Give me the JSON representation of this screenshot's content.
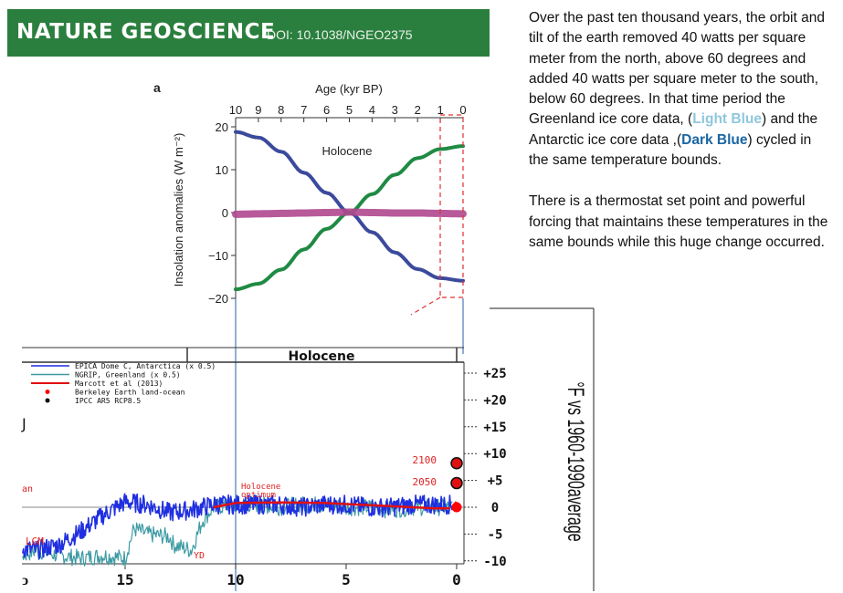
{
  "banner": {
    "journal": "NATURE GEOSCIENCE",
    "doi": "DOI: 10.1038/NGEO2375"
  },
  "panel_label": "a",
  "note": {
    "p1_before_light": "Over the past ten thousand years, the orbit and tilt of the earth removed 40 watts per square meter from the north, above 60 degrees and added 40 watts per square meter to the south, below 60 degrees.  In that time period the Greenland ice core data, (",
    "light_blue": "Light Blue",
    "p1_mid": ") and the Antarctic ice core data ,(",
    "dark_blue": "Dark Blue",
    "p1_after": ") cycled in the same temperature bounds.",
    "p2": "There is a thermostat set point and powerful forcing that maintains these temperatures in the same bounds while this huge change occurred."
  },
  "colors": {
    "banner": "#2b7f3e",
    "north": "#3b4a9c",
    "south": "#1f8a43",
    "difference": "#b0478f",
    "epica": "#1f2fe0",
    "ngrip": "#3d9aa3",
    "marcott": "#e01010",
    "berkeley": "#ff0000",
    "ipcc": "#111111",
    "zoom_box": "#e03030"
  },
  "chart_data": [
    {
      "type": "line",
      "xlabel": "Age (kyr BP)",
      "ylabel": "Insolation anomalies (W m⁻²)",
      "xlim": [
        10,
        0
      ],
      "ylim": [
        -20,
        20
      ],
      "x_ticks": [
        "10",
        "9",
        "8",
        "7",
        "6",
        "5",
        "4",
        "3",
        "2",
        "1",
        "0"
      ],
      "y_ticks": [
        "20",
        "10",
        "0",
        "−10",
        "−20"
      ],
      "annotations": [
        "Holocene"
      ],
      "x": [
        10,
        9,
        8,
        7,
        6,
        5,
        4,
        3,
        2,
        1,
        0
      ],
      "series": [
        {
          "values": [
            18.8,
            17.5,
            14.2,
            9.3,
            4.6,
            0,
            -4.6,
            -9.3,
            -13.2,
            -15.3,
            -15.9
          ]
        },
        {
          "values": [
            -17.9,
            -16.6,
            -13.3,
            -8.6,
            -3.8,
            0,
            4.3,
            8.8,
            12.7,
            14.8,
            15.5
          ]
        },
        {
          "values": [
            -0.4,
            -0.3,
            -0.2,
            -0.1,
            0,
            0.1,
            0,
            -0.1,
            -0.1,
            -0.2,
            -0.3
          ]
        }
      ]
    },
    {
      "type": "line",
      "header": "Holocene",
      "ylabel": "°F vs 1960-1990average",
      "xlim": [
        21,
        0
      ],
      "ylim": [
        -10,
        27
      ],
      "x_ticks": [
        "15",
        "10",
        "5",
        "0"
      ],
      "left_tick_fragment": "ↄ",
      "y_ticks": [
        "+25",
        "+20",
        "+15",
        "+10",
        "+5",
        "0",
        "-5",
        "-10"
      ],
      "annotations": [
        "Holocene optimum",
        "LGM",
        "YD",
        "an",
        "J",
        "2100",
        "2050"
      ],
      "legend": [
        "EPICA Dome C, Antarctica (x 0.5)",
        "NGRIP, Greenland (x 0.5)",
        "Marcott et al (2013)",
        "Berkeley Earth land-ocean",
        "IPCC AR5 RCP8.5"
      ],
      "series": [
        {
          "name": "EPICA Dome C, Antarctica (x 0.5)",
          "x": [
            21,
            20,
            19,
            18,
            17,
            16,
            15,
            14,
            13,
            12,
            11,
            10,
            9,
            8,
            7,
            6,
            5,
            4,
            3,
            2,
            1,
            0.2
          ],
          "values": [
            -8,
            -7.5,
            -8,
            -7,
            -4.5,
            -1.5,
            1,
            0.5,
            -1,
            -0.5,
            0.5,
            0.5,
            0.5,
            0.5,
            0,
            0.5,
            0.5,
            0,
            0,
            0.5,
            0.5,
            0.5
          ]
        },
        {
          "name": "NGRIP, Greenland (x 0.5)",
          "x": [
            21,
            20,
            19,
            18,
            17,
            16,
            15,
            14.6,
            14,
            13,
            12.8,
            12,
            11.5,
            11,
            10,
            9,
            8,
            7,
            6,
            5,
            4,
            3,
            2,
            1,
            0.2
          ],
          "values": [
            -8.5,
            -9.5,
            -8,
            -9,
            -9.5,
            -9,
            -9.5,
            -4,
            -5,
            -5.5,
            -7,
            -8,
            -2.5,
            0,
            0.5,
            0.5,
            0,
            0.5,
            0.5,
            0,
            0,
            -0.5,
            0,
            0,
            0
          ]
        },
        {
          "name": "Marcott et al (2013)",
          "x": [
            11,
            10,
            8,
            6,
            5,
            4,
            3,
            2,
            1,
            0.3
          ],
          "values": [
            0,
            0.8,
            0.9,
            0.8,
            0.6,
            0.4,
            0.2,
            0,
            -0.2,
            -0.2
          ]
        },
        {
          "name": "Berkeley Earth land-ocean",
          "x": [
            0.1,
            0.05,
            0
          ],
          "values": [
            -0.3,
            0.4,
            1
          ]
        },
        {
          "name": "IPCC AR5 RCP8.5",
          "x": [
            0,
            0
          ],
          "values": [
            4.5,
            8.2
          ]
        }
      ]
    }
  ]
}
